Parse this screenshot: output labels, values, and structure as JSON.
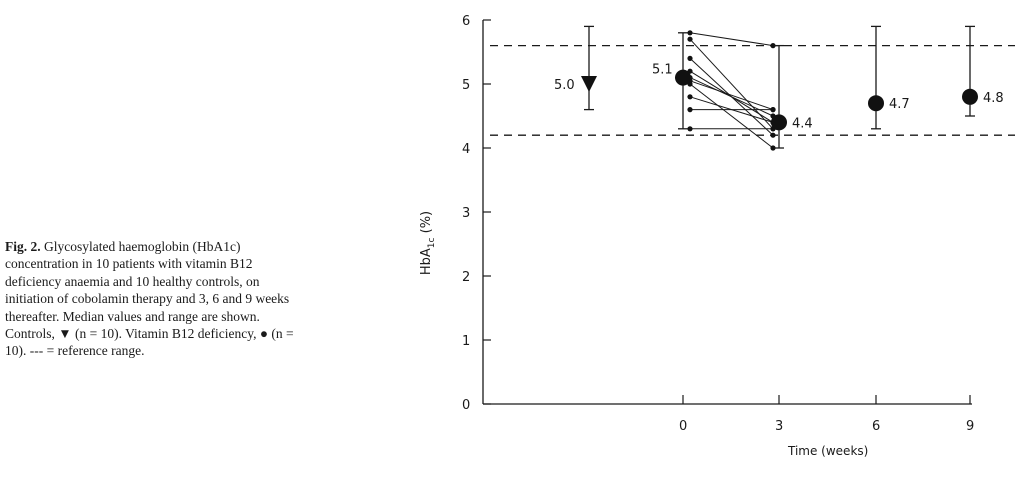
{
  "caption": {
    "label": "Fig. 2.",
    "text": " Glycosylated haemoglobin (HbA1c) concentration in 10 patients with vitamin B12 deficiency anaemia and 10 healthy controls, on initiation of cobolamin therapy and 3, 6 and 9 weeks thereafter. Median values and range are shown. Controls, ▼ (n = 10). Vitamin B12 deficiency, ● (n = 10). --- = reference range."
  },
  "chart_data": {
    "type": "scatter",
    "title": "",
    "xlabel": "Time (weeks)",
    "ylabel": "HbA1c (%)",
    "ylim": [
      0,
      6
    ],
    "x_ticks": [
      "0",
      "3",
      "6",
      "9"
    ],
    "y_ticks": [
      "0",
      "1",
      "2",
      "3",
      "4",
      "5",
      "6"
    ],
    "reference_range": [
      4.2,
      5.6
    ],
    "controls": {
      "marker": "triangle-down",
      "median": 5.0,
      "min": 4.6,
      "max": 5.9,
      "label": "5.0"
    },
    "deficiency_medians": [
      {
        "week": 0,
        "median": 5.1,
        "min": 4.3,
        "max": 5.8,
        "label": "5.1"
      },
      {
        "week": 3,
        "median": 4.4,
        "min": 4.0,
        "max": 5.6,
        "label": "4.4"
      },
      {
        "week": 6,
        "median": 4.7,
        "min": 4.3,
        "max": 5.9,
        "label": "4.7"
      },
      {
        "week": 9,
        "median": 4.8,
        "min": 4.5,
        "max": 5.9,
        "label": "4.8"
      }
    ],
    "individual_patients": [
      [
        5.8,
        5.6
      ],
      [
        5.7,
        4.3
      ],
      [
        5.4,
        4.2
      ],
      [
        5.1,
        4.5
      ],
      [
        5.05,
        4.6
      ],
      [
        5.0,
        4.0
      ],
      [
        4.8,
        4.4
      ],
      [
        4.6,
        4.6
      ],
      [
        4.3,
        4.3
      ],
      [
        5.2,
        4.4
      ]
    ]
  }
}
